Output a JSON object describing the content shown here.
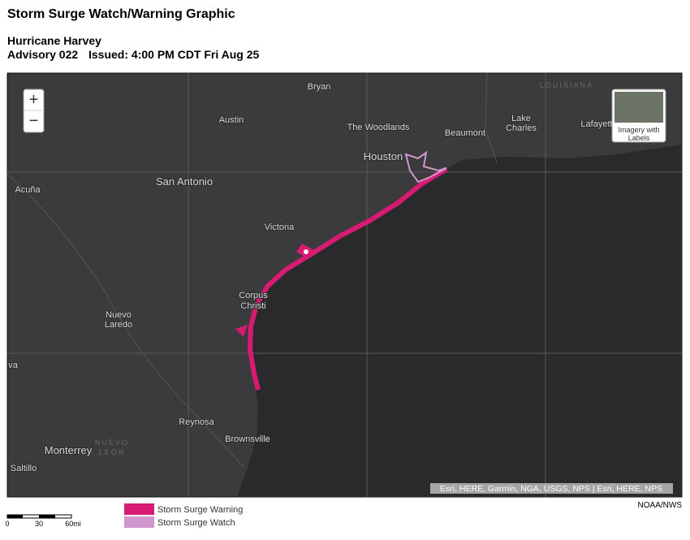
{
  "header": {
    "title": "Storm Surge Watch/Warning Graphic",
    "storm": "Hurricane Harvey",
    "advisory": "Advisory 022",
    "issued": "Issued: 4:00 PM CDT Fri Aug 25"
  },
  "map": {
    "labels": {
      "bryan": "Bryan",
      "louisiana": "LOUISIANA",
      "austin": "Austin",
      "woodlands": "The Woodlands",
      "beaumont": "Beaumont",
      "lake_charles": [
        "Lake",
        "Charles"
      ],
      "lafayette": "Lafayett",
      "houston": "Houston",
      "san_antonio": "San Antonio",
      "acuna": "Acuña",
      "victoria": "Victoria",
      "corpus_christi": [
        "Corpus",
        "Christi"
      ],
      "nuevo_laredo": [
        "Nuevo",
        "Laredo"
      ],
      "va": "va",
      "reynosa": "Reynosa",
      "brownsville": "Brownsville",
      "monterrey": "Monterrey",
      "nuevo_leon": [
        "NUEVO",
        "LEÓN"
      ],
      "saltillo": "Saltillo"
    },
    "zoom_in": "+",
    "zoom_out": "−",
    "basemap_button": [
      "Imagery with",
      "Labels"
    ],
    "attribution": "Esri, HERE, Garmin, NGA, USGS, NPS | Esri, HERE, NPS"
  },
  "legend": {
    "items": [
      {
        "label": "Storm Surge Warning",
        "color": "#d81b72"
      },
      {
        "label": "Storm Surge Watch",
        "color": "#cf97cc"
      }
    ]
  },
  "scale": {
    "labels": [
      "0",
      "30",
      "60mi"
    ]
  },
  "credit": "NOAA/NWS"
}
